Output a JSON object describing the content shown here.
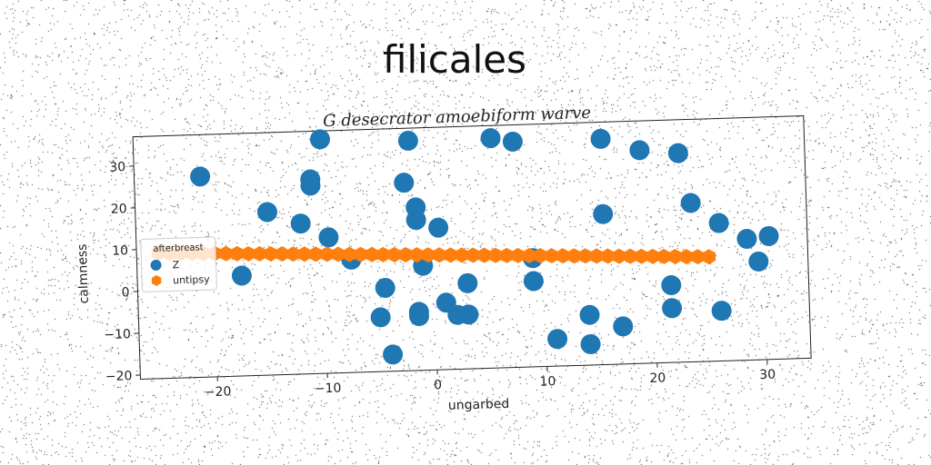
{
  "chart_data": {
    "type": "scatter",
    "title": "filicales",
    "subtitle": "G desecrator amoebiform warve",
    "xlabel": "ungarbed",
    "ylabel": "calmness",
    "xlim": [
      -27,
      34
    ],
    "ylim": [
      -21,
      37
    ],
    "xticks": [
      -20,
      -10,
      0,
      10,
      20,
      30
    ],
    "yticks": [
      -20,
      -10,
      0,
      10,
      20,
      30
    ],
    "xtick_labels": [
      "−20",
      "−10",
      "0",
      "10",
      "20",
      "30"
    ],
    "ytick_labels": [
      "−20",
      "−10",
      "0",
      "10",
      "20",
      "30"
    ],
    "grid": false,
    "legend": {
      "title": "afterbreast",
      "placement": "center-left",
      "entries": [
        "Z",
        "untipsy"
      ]
    },
    "series": [
      {
        "name": "Z",
        "color": "#1f77b4",
        "marker": "circle",
        "points": [
          [
            -21,
            27
          ],
          [
            -17.5,
            3
          ],
          [
            -15,
            18
          ],
          [
            -12,
            15
          ],
          [
            -11,
            25.5
          ],
          [
            -11,
            24
          ],
          [
            -10,
            35
          ],
          [
            -9.5,
            11.5
          ],
          [
            -7.5,
            6
          ],
          [
            -4.5,
            -1
          ],
          [
            -5,
            -8
          ],
          [
            -4,
            -17
          ],
          [
            -2.5,
            24
          ],
          [
            -2,
            34
          ],
          [
            -1.5,
            18
          ],
          [
            -1.5,
            15
          ],
          [
            -1.5,
            -7
          ],
          [
            -1.5,
            -8
          ],
          [
            -1,
            4
          ],
          [
            0.5,
            13
          ],
          [
            1,
            -5
          ],
          [
            2,
            -8
          ],
          [
            3,
            -8
          ],
          [
            3,
            -0.5
          ],
          [
            5.5,
            34
          ],
          [
            7.5,
            33
          ],
          [
            9,
            5
          ],
          [
            9,
            -0.5
          ],
          [
            11,
            -14.5
          ],
          [
            14,
            -9
          ],
          [
            14,
            -16
          ],
          [
            15.5,
            33
          ],
          [
            15.5,
            15
          ],
          [
            17,
            -12
          ],
          [
            19,
            30
          ],
          [
            21.5,
            -2.5
          ],
          [
            21.5,
            -8
          ],
          [
            22.5,
            29
          ],
          [
            23.5,
            17
          ],
          [
            26,
            12
          ],
          [
            26,
            -9
          ],
          [
            28.5,
            8
          ],
          [
            29.5,
            2.5
          ],
          [
            30.5,
            8.5
          ]
        ]
      },
      {
        "name": "untipsy",
        "color": "#ff7f0e",
        "marker": "hexagon",
        "line": {
          "x_start": -25,
          "x_end": 25,
          "y_start": 9,
          "y_end": 4,
          "count": 50
        }
      }
    ]
  }
}
